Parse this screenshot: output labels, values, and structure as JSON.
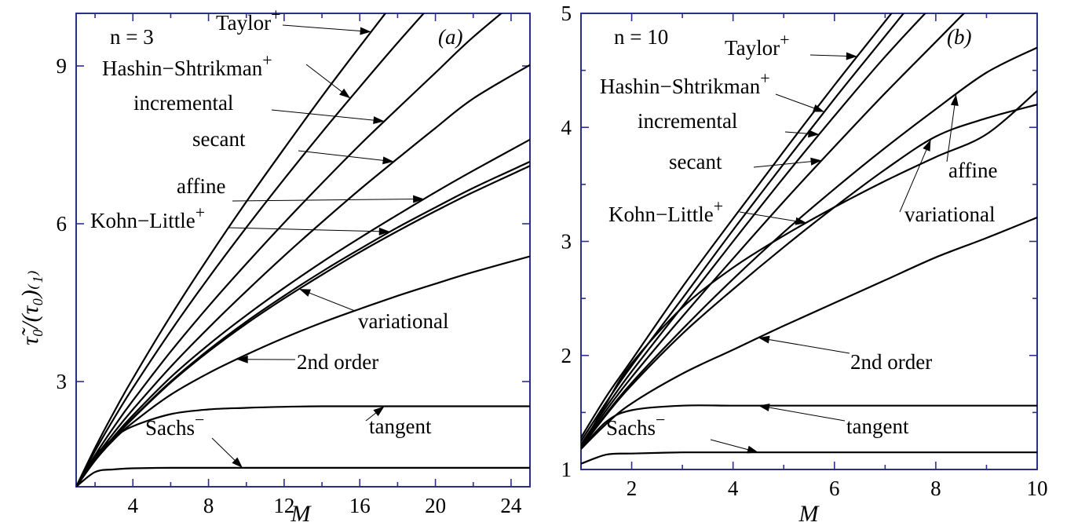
{
  "y_axis_label": "τ̃₀/(τ₀)₍₁₎",
  "chart_data": [
    {
      "type": "line",
      "panel_label": "(a)",
      "param_label": "n = 3",
      "xlabel": "M",
      "ylabel": "τ̃₀/(τ₀)₍₁₎",
      "xlim": [
        1,
        25
      ],
      "ylim": [
        1,
        10
      ],
      "x_ticks": [
        4,
        8,
        12,
        16,
        20,
        24
      ],
      "y_ticks": [
        3,
        6,
        9
      ],
      "x": [
        1,
        2,
        3,
        4,
        6,
        8,
        10,
        12,
        14,
        16,
        18,
        20,
        22,
        25
      ],
      "series": [
        {
          "name": "Taylor+",
          "values": [
            1.0,
            1.74,
            2.42,
            3.06,
            4.25,
            5.36,
            6.42,
            7.43,
            8.42,
            9.37,
            10.3,
            null,
            null,
            null
          ]
        },
        {
          "name": "Hashin−Shtrikman+",
          "values": [
            1.0,
            1.68,
            2.3,
            2.88,
            3.96,
            4.97,
            5.93,
            6.85,
            7.74,
            8.6,
            9.44,
            10.25,
            null,
            null
          ]
        },
        {
          "name": "incremental",
          "values": [
            1.0,
            1.6,
            2.14,
            2.64,
            3.57,
            4.43,
            5.24,
            6.02,
            6.77,
            7.5,
            8.19,
            8.87,
            9.55,
            10.45
          ]
        },
        {
          "name": "secant",
          "values": [
            1.0,
            1.55,
            2.03,
            2.47,
            3.28,
            4.02,
            4.72,
            5.39,
            6.03,
            6.65,
            7.24,
            7.82,
            8.38,
            9.02
          ]
        },
        {
          "name": "affine",
          "values": [
            1.0,
            1.52,
            1.96,
            2.36,
            3.08,
            3.7,
            4.26,
            4.78,
            5.27,
            5.73,
            6.17,
            6.6,
            7.01,
            7.6
          ]
        },
        {
          "name": "Kohn−Little+",
          "values": [
            1.0,
            1.5,
            1.92,
            2.31,
            3.0,
            3.6,
            4.14,
            4.63,
            5.09,
            5.52,
            5.93,
            6.31,
            6.68,
            7.18
          ]
        },
        {
          "name": "variational",
          "values": [
            1.0,
            1.5,
            1.92,
            2.3,
            2.98,
            3.57,
            4.1,
            4.58,
            5.03,
            5.46,
            5.86,
            6.24,
            6.6,
            7.1
          ]
        },
        {
          "name": "2nd order",
          "values": [
            1.0,
            1.5,
            1.9,
            2.22,
            2.75,
            3.16,
            3.51,
            3.83,
            4.12,
            4.38,
            4.63,
            4.86,
            5.08,
            5.38
          ]
        },
        {
          "name": "tangent",
          "values": [
            1.0,
            1.58,
            1.93,
            2.15,
            2.38,
            2.47,
            2.5,
            2.52,
            2.53,
            2.53,
            2.53,
            2.53,
            2.53,
            2.53
          ]
        },
        {
          "name": "Sachs−",
          "values": [
            1.0,
            1.28,
            1.33,
            1.35,
            1.36,
            1.36,
            1.36,
            1.36,
            1.36,
            1.36,
            1.36,
            1.36,
            1.36,
            1.36
          ]
        }
      ]
    },
    {
      "type": "line",
      "panel_label": "(b)",
      "param_label": "n = 10",
      "xlabel": "M",
      "xlim": [
        1,
        10
      ],
      "ylim": [
        1,
        5
      ],
      "x_ticks": [
        2,
        4,
        6,
        8,
        10
      ],
      "y_ticks": [
        1,
        2,
        3,
        4,
        5
      ],
      "x": [
        1,
        1.5,
        2,
        3,
        4,
        5,
        6,
        7,
        8,
        9,
        10
      ],
      "series": [
        {
          "name": "Taylor+",
          "values": [
            1.28,
            1.64,
            1.96,
            2.6,
            3.2,
            3.79,
            4.37,
            4.93,
            null,
            null,
            null
          ]
        },
        {
          "name": "Hashin−Shtrikman+",
          "values": [
            1.25,
            1.59,
            1.91,
            2.5,
            3.1,
            3.68,
            4.25,
            4.8,
            null,
            null,
            null
          ]
        },
        {
          "name": "incremental",
          "values": [
            1.22,
            1.55,
            1.86,
            2.43,
            3.0,
            3.56,
            4.1,
            4.62,
            5.1,
            null,
            null
          ]
        },
        {
          "name": "secant",
          "values": [
            1.2,
            1.52,
            1.81,
            2.34,
            2.85,
            3.35,
            3.83,
            4.3,
            4.75,
            null,
            null
          ]
        },
        {
          "name": "affine",
          "values": [
            1.19,
            1.49,
            1.76,
            2.23,
            2.67,
            3.08,
            3.46,
            3.82,
            4.16,
            4.48,
            4.7
          ]
        },
        {
          "name": "Kohn−Little+",
          "values": [
            1.19,
            1.58,
            1.93,
            2.42,
            2.77,
            3.05,
            3.3,
            3.53,
            3.74,
            3.94,
            4.32
          ]
        },
        {
          "name": "variational",
          "values": [
            1.19,
            1.48,
            1.74,
            2.19,
            2.58,
            2.95,
            3.3,
            3.63,
            3.92,
            4.08,
            4.2
          ]
        },
        {
          "name": "2nd order",
          "values": [
            1.18,
            1.4,
            1.58,
            1.84,
            2.05,
            2.26,
            2.46,
            2.66,
            2.86,
            3.03,
            3.21
          ]
        },
        {
          "name": "tangent",
          "values": [
            1.18,
            1.42,
            1.52,
            1.56,
            1.56,
            1.56,
            1.56,
            1.56,
            1.56,
            1.56,
            1.56
          ]
        },
        {
          "name": "Sachs−",
          "values": [
            1.05,
            1.13,
            1.14,
            1.15,
            1.15,
            1.15,
            1.15,
            1.15,
            1.15,
            1.15,
            1.15
          ]
        }
      ]
    }
  ]
}
